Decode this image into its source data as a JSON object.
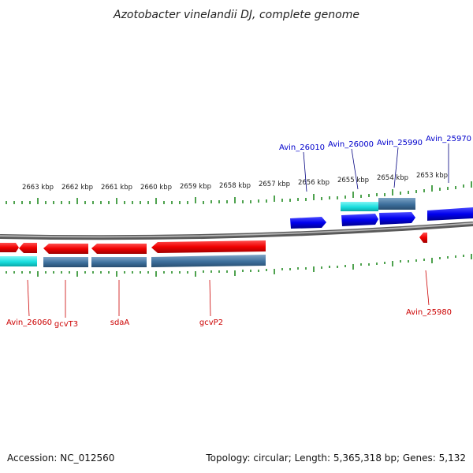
{
  "title": "Azotobacter vinelandii DJ, complete genome",
  "ruler_labels": [
    "2663 kbp",
    "2662 kbp",
    "2661 kbp",
    "2660 kbp",
    "2659 kbp",
    "2658 kbp",
    "2657 kbp",
    "2656 kbp",
    "2655 kbp",
    "2654 kbp",
    "2653 kbp"
  ],
  "top_gene_labels": [
    "Avin_26010",
    "Avin_26000",
    "Avin_25990",
    "Avin_25970"
  ],
  "bottom_gene_labels": [
    "Avin_26060",
    "gcvT3",
    "sdaA",
    "gcvP2",
    "Avin_25980"
  ],
  "colors": {
    "forward_gene": "#1a1aff",
    "reverse_gene": "#ff1a1a",
    "cds_blue": "#3a6e9e",
    "cds_cyan": "#22dddd",
    "backbone": "#808080",
    "tick": "#228b22",
    "top_label": "#0000cc",
    "bottom_label": "#cc0000"
  },
  "footer": {
    "accession": "Accession: NC_012560",
    "summary": "Topology: circular; Length: 5,365,318 bp; Genes: 5,132"
  }
}
